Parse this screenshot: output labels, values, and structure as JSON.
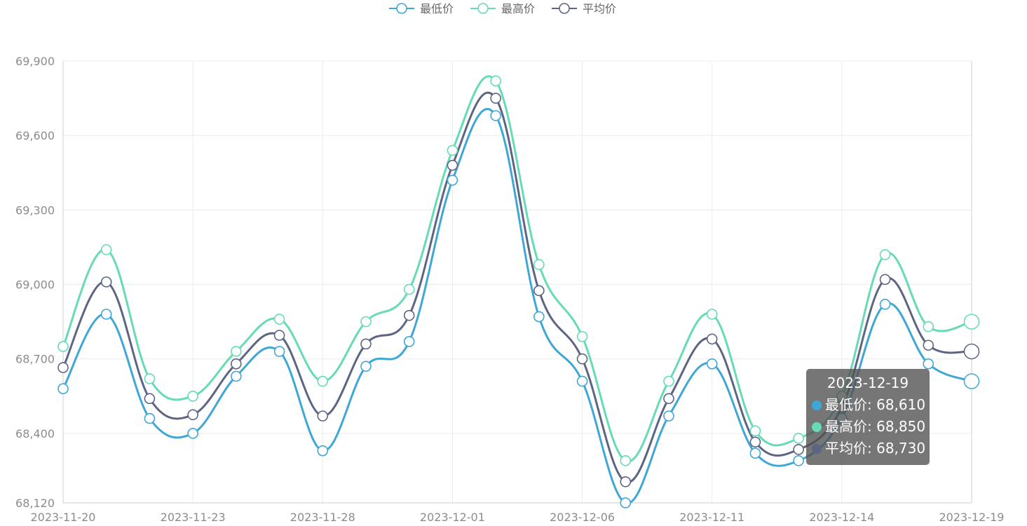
{
  "chart_data": {
    "type": "line",
    "smooth": true,
    "x": [
      "2023-11-20",
      "2023-11-21",
      "2023-11-22",
      "2023-11-23",
      "2023-11-24",
      "2023-11-27",
      "2023-11-28",
      "2023-11-29",
      "2023-11-30",
      "2023-12-01",
      "2023-12-04",
      "2023-12-05",
      "2023-12-06",
      "2023-12-07",
      "2023-12-08",
      "2023-12-11",
      "2023-12-12",
      "2023-12-13",
      "2023-12-14",
      "2023-12-15",
      "2023-12-18",
      "2023-12-19"
    ],
    "x_tick_labels": [
      "2023-11-20",
      "2023-11-23",
      "2023-11-28",
      "2023-12-01",
      "2023-12-06",
      "2023-12-11",
      "2023-12-14",
      "2023-12-19"
    ],
    "x_tick_indices": [
      0,
      3,
      6,
      9,
      12,
      15,
      18,
      21
    ],
    "series": [
      {
        "name": "最低价",
        "color": "#3fa7d6",
        "values": [
          68580,
          68880,
          68460,
          68400,
          68630,
          68730,
          68330,
          68670,
          68770,
          69420,
          69680,
          68870,
          68610,
          68120,
          68470,
          68680,
          68320,
          68290,
          68460,
          68920,
          68680,
          68610
        ]
      },
      {
        "name": "最高价",
        "color": "#66dbb5",
        "values": [
          68750,
          69140,
          68620,
          68550,
          68730,
          68860,
          68610,
          68850,
          68980,
          69540,
          69820,
          69080,
          68790,
          68290,
          68610,
          68880,
          68410,
          68380,
          68550,
          69120,
          68830,
          68850
        ]
      },
      {
        "name": "平均价",
        "color": "#5d6484",
        "values": [
          68665,
          69010,
          68540,
          68475,
          68680,
          68795,
          68470,
          68760,
          68875,
          69480,
          69750,
          68975,
          68700,
          68205,
          68540,
          68780,
          68365,
          68335,
          68505,
          69020,
          68755,
          68730
        ]
      }
    ],
    "y_ticks": [
      68120,
      68400,
      68700,
      69000,
      69300,
      69600,
      69900
    ],
    "y_tick_labels": [
      "68,120",
      "68,400",
      "68,700",
      "69,000",
      "69,300",
      "69,600",
      "69,900"
    ],
    "ylim": [
      68120,
      69900
    ],
    "legend_position": "top-center",
    "grid": true
  },
  "tooltip": {
    "title": "2023-12-19",
    "rows": [
      {
        "label": "最低价: 68,610",
        "color": "#3fa7d6"
      },
      {
        "label": "最高价: 68,850",
        "color": "#66dbb5"
      },
      {
        "label": "平均价: 68,730",
        "color": "#5d6484"
      }
    ]
  }
}
